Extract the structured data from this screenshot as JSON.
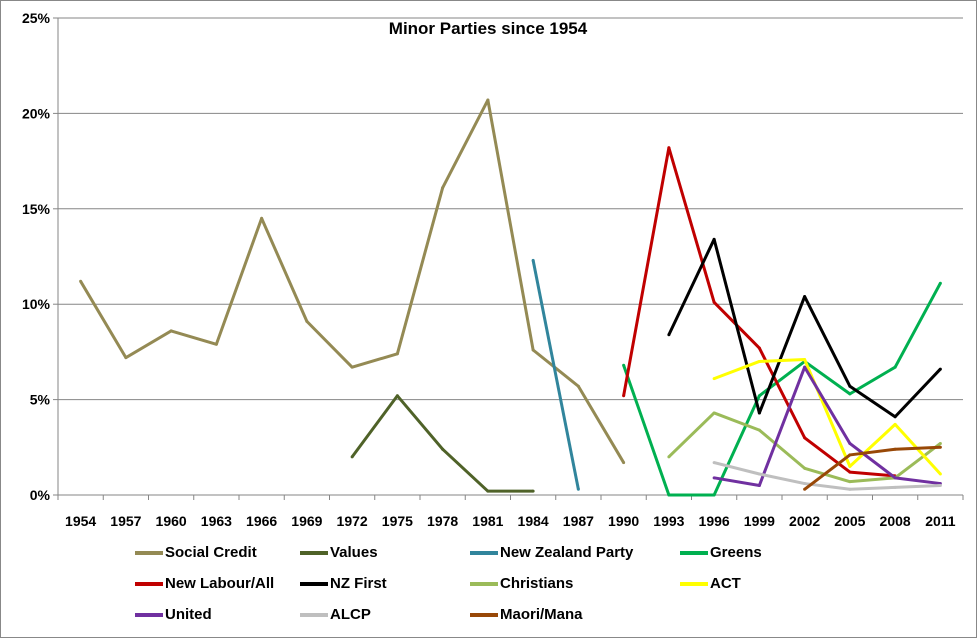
{
  "chart_data": {
    "type": "line",
    "title": "Minor Parties since 1954",
    "xlabel": "",
    "ylabel": "",
    "categories": [
      "1954",
      "1957",
      "1960",
      "1963",
      "1966",
      "1969",
      "1972",
      "1975",
      "1978",
      "1981",
      "1984",
      "1987",
      "1990",
      "1993",
      "1996",
      "1999",
      "2002",
      "2005",
      "2008",
      "2011"
    ],
    "ylim": [
      0,
      25
    ],
    "yticks": [
      "0%",
      "5%",
      "10%",
      "15%",
      "20%",
      "25%"
    ],
    "grid": true,
    "legend": "bottom",
    "series": [
      {
        "name": "Social Credit",
        "color": "#948A54",
        "values": [
          11.2,
          7.2,
          8.6,
          7.9,
          14.5,
          9.1,
          6.7,
          7.4,
          16.1,
          20.7,
          7.6,
          5.7,
          1.7,
          null,
          null,
          null,
          null,
          null,
          null,
          null
        ]
      },
      {
        "name": "Values",
        "color": "#4F6228",
        "values": [
          null,
          null,
          null,
          null,
          null,
          null,
          2.0,
          5.2,
          2.4,
          0.2,
          0.2,
          null,
          null,
          null,
          null,
          null,
          null,
          null,
          null,
          null
        ]
      },
      {
        "name": "New Zealand Party",
        "color": "#31859C",
        "values": [
          null,
          null,
          null,
          null,
          null,
          null,
          null,
          null,
          null,
          null,
          12.3,
          0.3,
          null,
          null,
          null,
          null,
          null,
          null,
          null,
          null
        ]
      },
      {
        "name": "Greens",
        "color": "#00B050",
        "values": [
          null,
          null,
          null,
          null,
          null,
          null,
          null,
          null,
          null,
          null,
          null,
          null,
          6.8,
          0,
          0,
          5.2,
          7.0,
          5.3,
          6.7,
          11.1
        ]
      },
      {
        "name": "New Labour/All",
        "color": "#C00000",
        "values": [
          null,
          null,
          null,
          null,
          null,
          null,
          null,
          null,
          null,
          null,
          null,
          null,
          5.2,
          18.2,
          10.1,
          7.7,
          3.0,
          1.2,
          1.0,
          null
        ]
      },
      {
        "name": "NZ First",
        "color": "#000000",
        "values": [
          null,
          null,
          null,
          null,
          null,
          null,
          null,
          null,
          null,
          null,
          null,
          null,
          null,
          8.4,
          13.4,
          4.3,
          10.4,
          5.7,
          4.1,
          6.6
        ]
      },
      {
        "name": "Christians",
        "color": "#9BBB59",
        "values": [
          null,
          null,
          null,
          null,
          null,
          null,
          null,
          null,
          null,
          null,
          null,
          null,
          null,
          2.0,
          4.3,
          3.4,
          1.4,
          0.7,
          0.9,
          2.7
        ]
      },
      {
        "name": "ACT",
        "color": "#FFFF00",
        "values": [
          null,
          null,
          null,
          null,
          null,
          null,
          null,
          null,
          null,
          null,
          null,
          null,
          null,
          null,
          6.1,
          7.0,
          7.1,
          1.5,
          3.7,
          1.1
        ]
      },
      {
        "name": "United",
        "color": "#7030A0",
        "values": [
          null,
          null,
          null,
          null,
          null,
          null,
          null,
          null,
          null,
          null,
          null,
          null,
          null,
          null,
          0.9,
          0.5,
          6.7,
          2.7,
          0.9,
          0.6
        ]
      },
      {
        "name": "ALCP",
        "color": "#BFBFBF",
        "values": [
          null,
          null,
          null,
          null,
          null,
          null,
          null,
          null,
          null,
          null,
          null,
          null,
          null,
          null,
          1.7,
          1.1,
          0.6,
          0.3,
          0.4,
          0.5
        ]
      },
      {
        "name": "Maori/Mana",
        "color": "#984807",
        "values": [
          null,
          null,
          null,
          null,
          null,
          null,
          null,
          null,
          null,
          null,
          null,
          null,
          null,
          null,
          null,
          null,
          0.3,
          2.1,
          2.4,
          2.5
        ]
      }
    ]
  }
}
